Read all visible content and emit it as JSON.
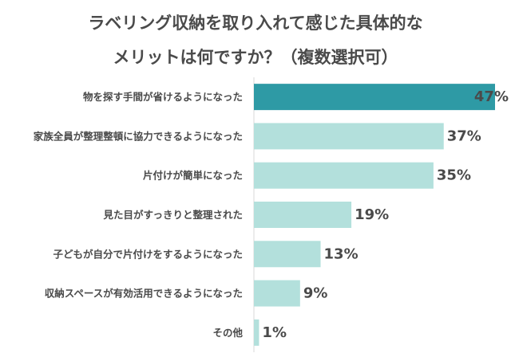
{
  "chart_data": {
    "type": "bar",
    "orientation": "horizontal",
    "title_lines": [
      "ラベリング収納を取り入れて感じた具体的な",
      "メリットは何ですか？（複数選択可）"
    ],
    "categories": [
      "物を探す手間が省けるようになった",
      "家族全員が整理整頓に協力できるようになった",
      "片付けが簡単になった",
      "見た目がすっきりと整理された",
      "子どもが自分で片付けをするようになった",
      "収納スペースが有効活用できるようになった",
      "その他"
    ],
    "values": [
      47,
      37,
      35,
      19,
      13,
      9,
      1
    ],
    "value_labels": [
      "47%",
      "37%",
      "35%",
      "19%",
      "13%",
      "9%",
      "1%"
    ],
    "xlim": [
      0,
      47
    ],
    "grid": false,
    "legend": "none",
    "colors": {
      "highlight": "#2e9aa5",
      "bar": "#b3e0dc",
      "axis": "#d9d9d9"
    },
    "highlight_index": 0
  }
}
